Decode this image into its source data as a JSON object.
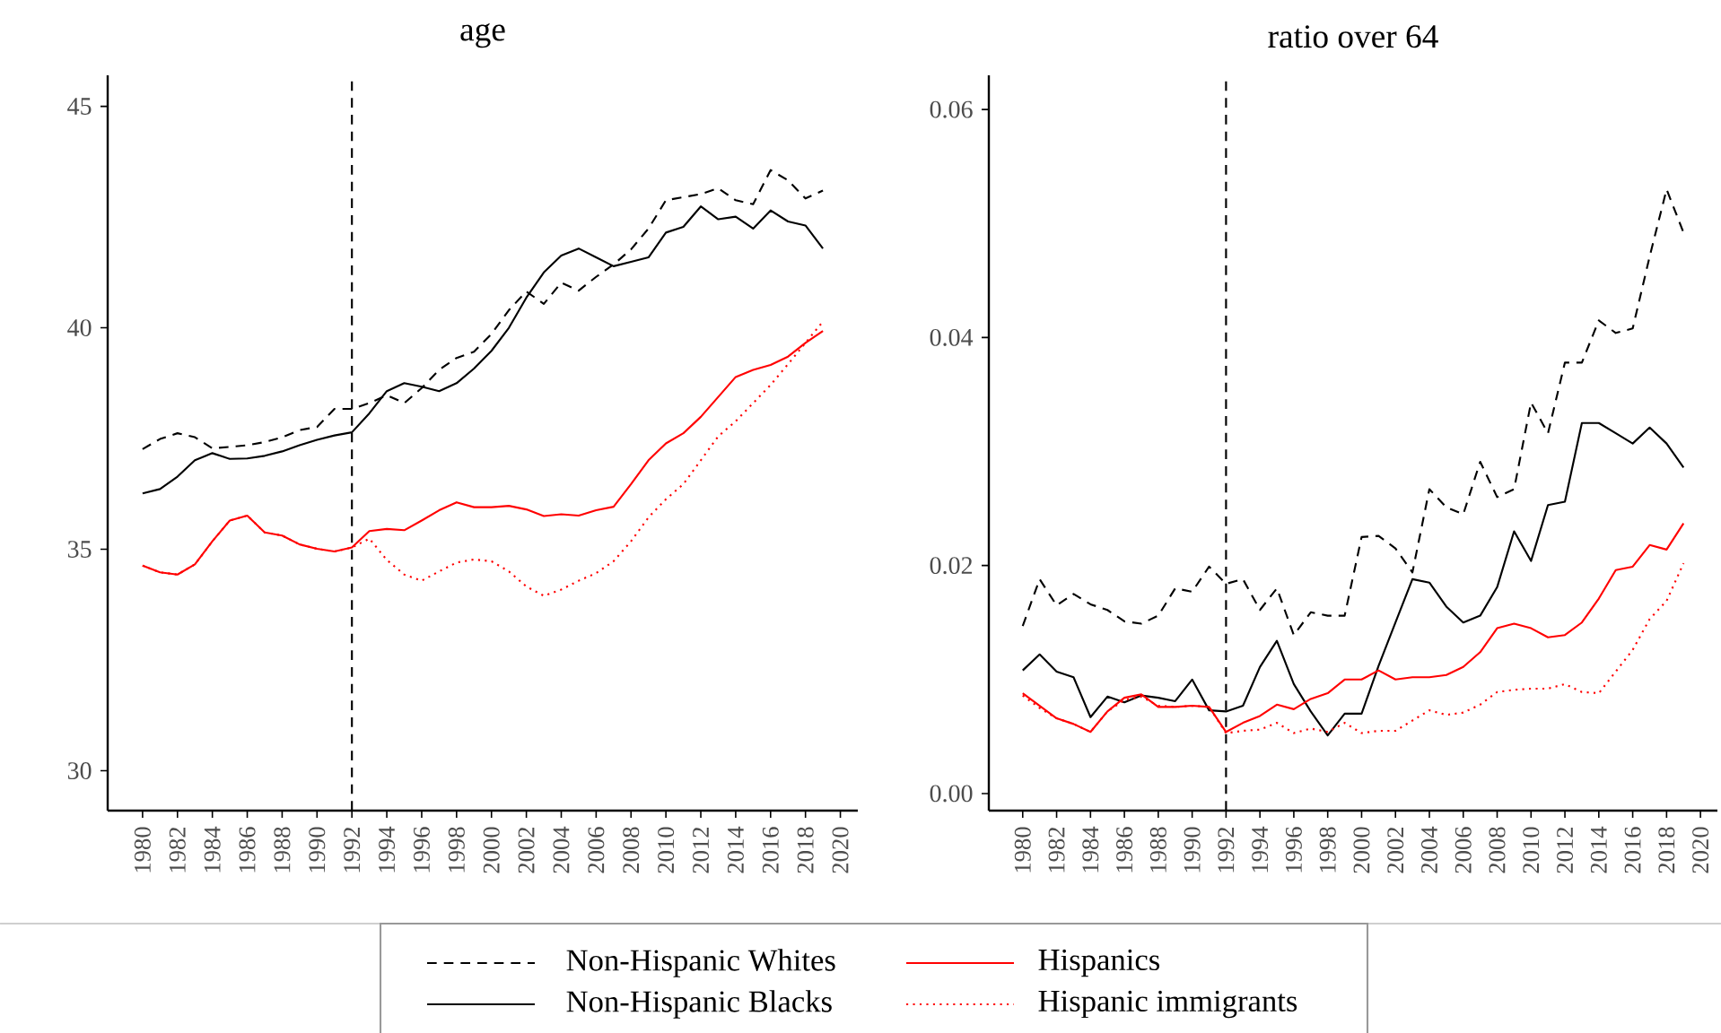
{
  "chart_data": [
    {
      "type": "line",
      "title": "age",
      "x": [
        1980,
        1981,
        1982,
        1983,
        1984,
        1985,
        1986,
        1987,
        1988,
        1989,
        1990,
        1991,
        1992,
        1993,
        1994,
        1995,
        1996,
        1997,
        1998,
        1999,
        2000,
        2001,
        2002,
        2003,
        2004,
        2005,
        2006,
        2007,
        2008,
        2009,
        2010,
        2011,
        2012,
        2013,
        2014,
        2015,
        2016,
        2017,
        2018,
        2019
      ],
      "xlim": [
        1978,
        2021
      ],
      "xticks": [
        1980,
        1982,
        1984,
        1986,
        1988,
        1990,
        1992,
        1994,
        1996,
        1998,
        2000,
        2002,
        2004,
        2006,
        2008,
        2010,
        2012,
        2014,
        2016,
        2018,
        2020
      ],
      "ylim": [
        29.1,
        45.7
      ],
      "yticks": [
        30,
        35,
        40,
        45
      ],
      "grid": false,
      "legend": "bottom",
      "ref_lines": [
        {
          "axis": "x",
          "value": 1992,
          "color": "#000000",
          "line_style": "dashed"
        }
      ],
      "series": [
        {
          "name": "Non-Hispanic Whites",
          "color": "#000000",
          "line_style": "dashed",
          "values": [
            37.26,
            37.49,
            37.62,
            37.53,
            37.28,
            37.31,
            37.35,
            37.42,
            37.53,
            37.69,
            37.76,
            38.17,
            38.17,
            38.3,
            38.48,
            38.3,
            38.64,
            39.05,
            39.32,
            39.46,
            39.86,
            40.4,
            40.82,
            40.54,
            41.02,
            40.84,
            41.15,
            41.43,
            41.77,
            42.24,
            42.88,
            42.95,
            43.02,
            43.15,
            42.88,
            42.79,
            43.56,
            43.33,
            42.92,
            43.1
          ]
        },
        {
          "name": "Non-Hispanic Blacks",
          "color": "#000000",
          "line_style": "solid",
          "values": [
            36.26,
            36.36,
            36.64,
            37.01,
            37.17,
            37.04,
            37.05,
            37.11,
            37.21,
            37.35,
            37.47,
            37.57,
            37.64,
            38.07,
            38.57,
            38.75,
            38.67,
            38.57,
            38.75,
            39.08,
            39.48,
            40.0,
            40.68,
            41.25,
            41.63,
            41.79,
            41.59,
            41.39,
            41.49,
            41.59,
            42.15,
            42.28,
            42.74,
            42.45,
            42.51,
            42.24,
            42.65,
            42.4,
            42.31,
            41.79
          ]
        },
        {
          "name": "Hispanics",
          "color": "#ff0000",
          "line_style": "solid",
          "values": [
            34.63,
            34.48,
            34.43,
            34.66,
            35.18,
            35.65,
            35.76,
            35.38,
            35.31,
            35.11,
            35.01,
            34.95,
            35.04,
            35.41,
            35.46,
            35.43,
            35.65,
            35.88,
            36.06,
            35.95,
            35.95,
            35.98,
            35.9,
            35.75,
            35.79,
            35.76,
            35.88,
            35.96,
            36.47,
            37.01,
            37.39,
            37.62,
            37.99,
            38.44,
            38.89,
            39.05,
            39.16,
            39.35,
            39.66,
            39.93
          ]
        },
        {
          "name": "Hispanic immigrants",
          "color": "#ff0000",
          "line_style": "dotted",
          "values": [
            34.63,
            34.48,
            34.43,
            34.66,
            35.18,
            35.65,
            35.76,
            35.38,
            35.31,
            35.11,
            35.01,
            34.95,
            35.04,
            35.24,
            34.76,
            34.43,
            34.29,
            34.5,
            34.7,
            34.77,
            34.73,
            34.5,
            34.16,
            33.95,
            34.09,
            34.29,
            34.46,
            34.73,
            35.18,
            35.72,
            36.13,
            36.47,
            37.01,
            37.55,
            37.89,
            38.3,
            38.71,
            39.18,
            39.66,
            40.14
          ]
        }
      ]
    },
    {
      "type": "line",
      "title": "ratio over 64",
      "x": [
        1980,
        1981,
        1982,
        1983,
        1984,
        1985,
        1986,
        1987,
        1988,
        1989,
        1990,
        1991,
        1992,
        1993,
        1994,
        1995,
        1996,
        1997,
        1998,
        1999,
        2000,
        2001,
        2002,
        2003,
        2004,
        2005,
        2006,
        2007,
        2008,
        2009,
        2010,
        2011,
        2012,
        2013,
        2014,
        2015,
        2016,
        2017,
        2018,
        2019
      ],
      "xlim": [
        1978,
        2021
      ],
      "xticks": [
        1980,
        1982,
        1984,
        1986,
        1988,
        1990,
        1992,
        1994,
        1996,
        1998,
        2000,
        2002,
        2004,
        2006,
        2008,
        2010,
        2012,
        2014,
        2016,
        2018,
        2020
      ],
      "ylim": [
        -0.0015,
        0.063
      ],
      "yticks": [
        {
          "value": 0,
          "label": "0.00"
        },
        0.02,
        0.04,
        0.06
      ],
      "grid": false,
      "ref_lines": [
        {
          "axis": "x",
          "value": 1992,
          "color": "#000000",
          "line_style": "dashed"
        }
      ],
      "series": [
        {
          "color": "#000000",
          "line_style": "dashed",
          "values": [
            0.0147,
            0.0188,
            0.0165,
            0.0175,
            0.0166,
            0.0161,
            0.0151,
            0.0149,
            0.0156,
            0.018,
            0.0177,
            0.0199,
            0.0184,
            0.0188,
            0.0161,
            0.018,
            0.0139,
            0.0159,
            0.0156,
            0.0156,
            0.0225,
            0.0226,
            0.0215,
            0.0194,
            0.0267,
            0.0251,
            0.0245,
            0.0291,
            0.026,
            0.0267,
            0.0343,
            0.0316,
            0.0378,
            0.0378,
            0.0415,
            0.0404,
            0.0408,
            0.0471,
            0.053,
            0.0492
          ]
        },
        {
          "color": "#000000",
          "line_style": "solid",
          "values": [
            0.0108,
            0.0122,
            0.0107,
            0.0102,
            0.0067,
            0.0085,
            0.008,
            0.0086,
            0.0084,
            0.0081,
            0.01,
            0.0073,
            0.0072,
            0.0077,
            0.0111,
            0.0134,
            0.0096,
            0.0072,
            0.0051,
            0.007,
            0.007,
            0.0112,
            0.015,
            0.0188,
            0.0185,
            0.0164,
            0.015,
            0.0156,
            0.0181,
            0.023,
            0.0204,
            0.0253,
            0.0256,
            0.0325,
            0.0325,
            0.0316,
            0.0307,
            0.0321,
            0.0307,
            0.0286
          ]
        },
        {
          "color": "#ff0000",
          "line_style": "solid",
          "values": [
            0.0088,
            0.0077,
            0.0066,
            0.0061,
            0.0054,
            0.0072,
            0.0084,
            0.0087,
            0.0076,
            0.0076,
            0.0077,
            0.0076,
            0.0054,
            0.0062,
            0.0068,
            0.0078,
            0.0074,
            0.0083,
            0.0088,
            0.01,
            0.01,
            0.0108,
            0.01,
            0.0102,
            0.0102,
            0.0104,
            0.0111,
            0.0124,
            0.0145,
            0.0149,
            0.0145,
            0.0137,
            0.0139,
            0.015,
            0.0171,
            0.0196,
            0.0199,
            0.0218,
            0.0214,
            0.0237
          ]
        },
        {
          "color": "#ff0000",
          "line_style": "dotted",
          "values": [
            0.0086,
            0.0075,
            0.0066,
            0.0061,
            0.0054,
            0.0072,
            0.0082,
            0.0085,
            0.0077,
            0.0076,
            0.0077,
            0.0076,
            0.0053,
            0.0055,
            0.0056,
            0.0062,
            0.0053,
            0.0057,
            0.0054,
            0.0062,
            0.0053,
            0.0055,
            0.0055,
            0.0064,
            0.0073,
            0.0069,
            0.0071,
            0.0078,
            0.0089,
            0.0091,
            0.0092,
            0.0092,
            0.0096,
            0.0089,
            0.0088,
            0.0107,
            0.0126,
            0.0153,
            0.0169,
            0.0202
          ]
        }
      ]
    }
  ]
}
